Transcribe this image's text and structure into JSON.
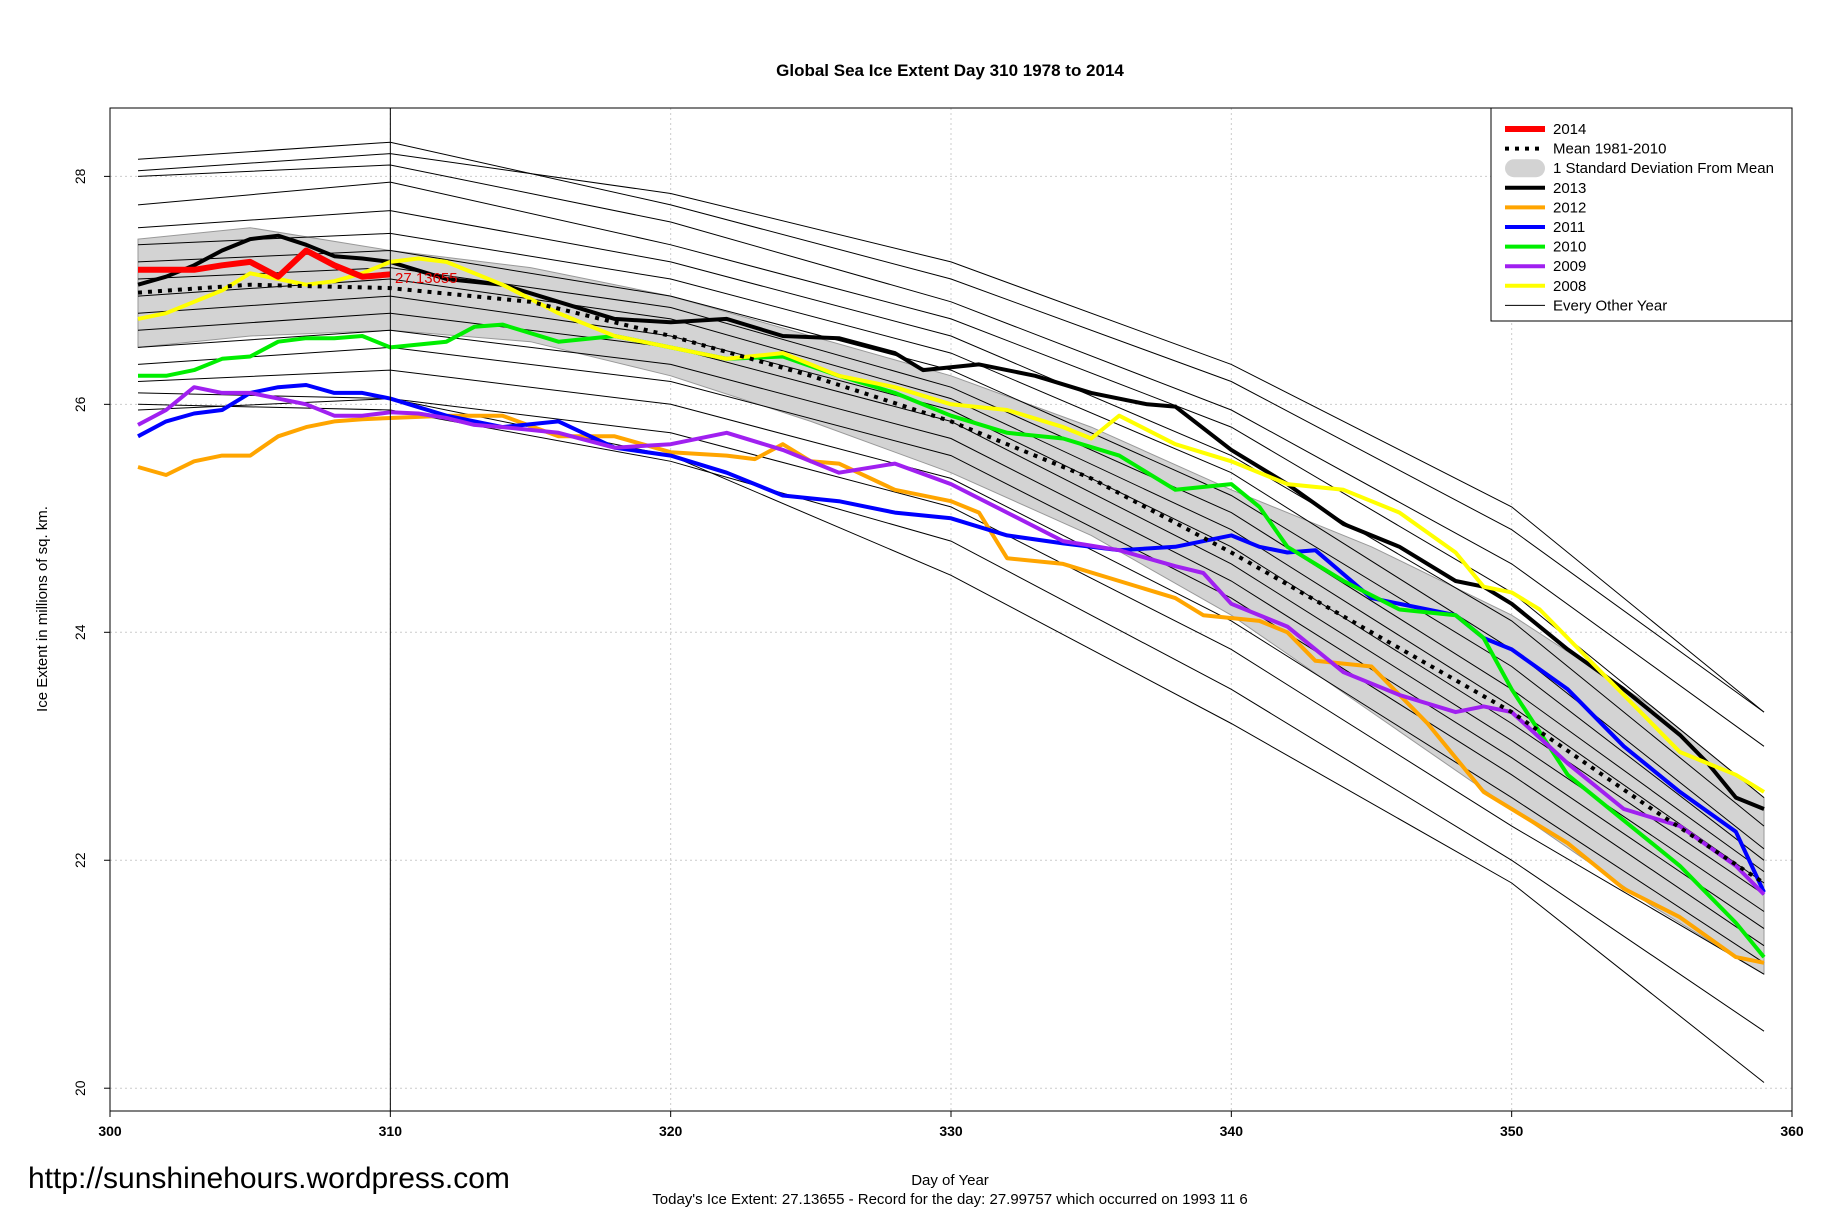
{
  "watermark": "http://sunshinehours.wordpress.com",
  "footer": {
    "xlabel": "Day of Year",
    "caption": "Today's Ice Extent: 27.13655  - Record for the day: 27.99757 which occurred on 1993 11 6"
  },
  "chart_data": {
    "type": "line",
    "title": "Global Sea Ice Extent Day 310 1978 to 2014",
    "xlabel": "Day of Year",
    "ylabel": "Ice Extent in millions of sq. km.",
    "xlim": [
      300,
      360
    ],
    "ylim": [
      19.8,
      28.6
    ],
    "xticks": [
      300,
      310,
      320,
      330,
      340,
      350,
      360
    ],
    "yticks": [
      20,
      22,
      24,
      26,
      28
    ],
    "grid": true,
    "legend_position": "top-right",
    "current_day": 310,
    "current_value_label": "27.13655",
    "legend": [
      {
        "label": "2014",
        "color": "#ff0000",
        "style": "thick"
      },
      {
        "label": "Mean 1981-2010",
        "color": "#000000",
        "style": "dotted"
      },
      {
        "label": "1 Standard Deviation From Mean",
        "color": "#d3d3d3",
        "style": "band"
      },
      {
        "label": "2013",
        "color": "#000000",
        "style": "line"
      },
      {
        "label": "2012",
        "color": "#ffa500",
        "style": "line"
      },
      {
        "label": "2011",
        "color": "#0000ff",
        "style": "line"
      },
      {
        "label": "2010",
        "color": "#00ee00",
        "style": "line"
      },
      {
        "label": "2009",
        "color": "#a020f0",
        "style": "line"
      },
      {
        "label": "2008",
        "color": "#ffff00",
        "style": "line"
      },
      {
        "label": "Every Other Year",
        "color": "#000000",
        "style": "thin"
      }
    ],
    "mean": {
      "x": [
        301,
        305,
        310,
        315,
        320,
        325,
        330,
        335,
        340,
        345,
        350,
        355,
        359
      ],
      "y": [
        26.98,
        27.05,
        27.02,
        26.9,
        26.6,
        26.25,
        25.85,
        25.35,
        24.7,
        24.0,
        23.3,
        22.45,
        21.8
      ]
    },
    "std_band": {
      "x": [
        301,
        305,
        310,
        315,
        320,
        325,
        330,
        335,
        340,
        345,
        350,
        355,
        359
      ],
      "upper": [
        27.45,
        27.55,
        27.35,
        27.2,
        26.95,
        26.6,
        26.25,
        25.8,
        25.25,
        24.75,
        24.15,
        23.35,
        22.55
      ],
      "lower": [
        26.5,
        26.6,
        26.65,
        26.55,
        26.25,
        25.85,
        25.4,
        24.85,
        24.15,
        23.3,
        22.45,
        21.6,
        21.0
      ]
    },
    "series": [
      {
        "name": "2014",
        "color": "#ff0000",
        "width": 6,
        "x": [
          301,
          302,
          303,
          304,
          305,
          306,
          307,
          308,
          309,
          310
        ],
        "y": [
          27.18,
          27.18,
          27.18,
          27.22,
          27.25,
          27.12,
          27.35,
          27.22,
          27.12,
          27.14
        ]
      },
      {
        "name": "2013",
        "color": "#000000",
        "width": 4,
        "x": [
          301,
          302,
          303,
          304,
          305,
          306,
          307,
          308,
          309,
          310,
          312,
          314,
          316,
          318,
          320,
          322,
          324,
          326,
          328,
          329,
          331,
          333,
          335,
          337,
          338,
          340,
          342,
          344,
          346,
          348,
          349,
          350,
          352,
          354,
          356,
          357,
          358,
          359
        ],
        "y": [
          27.05,
          27.12,
          27.22,
          27.35,
          27.45,
          27.48,
          27.4,
          27.3,
          27.28,
          27.25,
          27.1,
          27.05,
          26.9,
          26.75,
          26.72,
          26.75,
          26.6,
          26.58,
          26.45,
          26.3,
          26.35,
          26.25,
          26.1,
          26.0,
          25.98,
          25.6,
          25.3,
          24.95,
          24.75,
          24.45,
          24.4,
          24.25,
          23.85,
          23.5,
          23.1,
          22.85,
          22.55,
          22.45
        ]
      },
      {
        "name": "2012",
        "color": "#ffa500",
        "width": 4,
        "x": [
          301,
          302,
          303,
          304,
          305,
          306,
          307,
          308,
          309,
          310,
          312,
          314,
          316,
          318,
          320,
          322,
          323,
          324,
          325,
          326,
          328,
          330,
          331,
          332,
          334,
          336,
          338,
          339,
          341,
          342,
          343,
          345,
          347,
          349,
          350,
          352,
          354,
          356,
          358,
          359
        ],
        "y": [
          25.45,
          25.38,
          25.5,
          25.55,
          25.55,
          25.72,
          25.8,
          25.85,
          25.87,
          25.88,
          25.9,
          25.9,
          25.72,
          25.72,
          25.58,
          25.55,
          25.52,
          25.65,
          25.5,
          25.48,
          25.25,
          25.15,
          25.05,
          24.65,
          24.6,
          24.45,
          24.3,
          24.15,
          24.1,
          24.0,
          23.75,
          23.7,
          23.2,
          22.6,
          22.45,
          22.15,
          21.75,
          21.5,
          21.15,
          21.1
        ]
      },
      {
        "name": "2011",
        "color": "#0000ff",
        "width": 4,
        "x": [
          301,
          302,
          303,
          304,
          305,
          306,
          307,
          308,
          309,
          310,
          312,
          314,
          316,
          318,
          320,
          322,
          324,
          326,
          328,
          330,
          332,
          334,
          336,
          338,
          340,
          341,
          342,
          343,
          345,
          347,
          348,
          349,
          350,
          352,
          354,
          356,
          358,
          359
        ],
        "y": [
          25.72,
          25.85,
          25.92,
          25.95,
          26.1,
          26.15,
          26.17,
          26.1,
          26.1,
          26.05,
          25.9,
          25.8,
          25.85,
          25.62,
          25.55,
          25.4,
          25.2,
          25.15,
          25.05,
          25.0,
          24.85,
          24.78,
          24.72,
          24.75,
          24.85,
          24.75,
          24.7,
          24.72,
          24.3,
          24.2,
          24.15,
          23.95,
          23.85,
          23.5,
          23.0,
          22.6,
          22.25,
          21.72
        ]
      },
      {
        "name": "2010",
        "color": "#00ee00",
        "width": 4,
        "x": [
          301,
          302,
          303,
          304,
          305,
          306,
          307,
          308,
          309,
          310,
          312,
          313,
          314,
          316,
          318,
          320,
          322,
          324,
          326,
          328,
          330,
          332,
          334,
          336,
          338,
          340,
          341,
          342,
          344,
          346,
          348,
          349,
          350,
          352,
          354,
          356,
          358,
          359
        ],
        "y": [
          26.25,
          26.25,
          26.3,
          26.4,
          26.42,
          26.55,
          26.58,
          26.58,
          26.6,
          26.5,
          26.55,
          26.68,
          26.7,
          26.55,
          26.6,
          26.5,
          26.4,
          26.42,
          26.25,
          26.1,
          25.9,
          25.75,
          25.7,
          25.55,
          25.25,
          25.3,
          25.1,
          24.75,
          24.45,
          24.2,
          24.15,
          23.95,
          23.5,
          22.75,
          22.35,
          21.95,
          21.45,
          21.15
        ]
      },
      {
        "name": "2009",
        "color": "#a020f0",
        "width": 4,
        "x": [
          301,
          302,
          303,
          304,
          305,
          306,
          307,
          308,
          309,
          310,
          311,
          312,
          313,
          314,
          316,
          318,
          320,
          322,
          324,
          326,
          328,
          330,
          332,
          334,
          336,
          338,
          339,
          340,
          342,
          344,
          346,
          348,
          349,
          350,
          352,
          354,
          356,
          358,
          359
        ],
        "y": [
          25.82,
          25.95,
          26.15,
          26.1,
          26.1,
          26.05,
          26.0,
          25.9,
          25.9,
          25.93,
          25.92,
          25.88,
          25.82,
          25.8,
          25.75,
          25.62,
          25.65,
          25.75,
          25.6,
          25.4,
          25.48,
          25.3,
          25.05,
          24.8,
          24.72,
          24.58,
          24.52,
          24.25,
          24.05,
          23.65,
          23.45,
          23.3,
          23.35,
          23.3,
          22.85,
          22.45,
          22.3,
          21.95,
          21.7
        ]
      },
      {
        "name": "2008",
        "color": "#ffff00",
        "width": 4,
        "x": [
          301,
          302,
          303,
          304,
          305,
          306,
          307,
          308,
          309,
          310,
          311,
          312,
          314,
          316,
          318,
          320,
          322,
          324,
          326,
          328,
          330,
          332,
          334,
          335,
          336,
          338,
          340,
          342,
          344,
          346,
          348,
          349,
          350,
          351,
          352,
          354,
          356,
          358,
          359
        ],
        "y": [
          26.75,
          26.8,
          26.9,
          27.0,
          27.15,
          27.1,
          27.05,
          27.08,
          27.15,
          27.25,
          27.28,
          27.25,
          27.05,
          26.8,
          26.6,
          26.5,
          26.4,
          26.45,
          26.25,
          26.15,
          26.0,
          25.95,
          25.8,
          25.7,
          25.9,
          25.65,
          25.5,
          25.3,
          25.25,
          25.05,
          24.7,
          24.4,
          24.35,
          24.2,
          23.95,
          23.45,
          22.95,
          22.75,
          22.6
        ]
      },
      {
        "name": "Every Other Year",
        "color": "#000000",
        "width": 1,
        "x": [
          301,
          310,
          320,
          330,
          340,
          350,
          359
        ],
        "y": [
          28.15,
          28.3,
          27.75,
          27.1,
          26.2,
          24.9,
          23.3
        ]
      },
      {
        "name": "Every Other Year",
        "color": "#000000",
        "width": 1,
        "x": [
          301,
          310,
          320,
          330,
          340,
          350,
          359
        ],
        "y": [
          28.0,
          28.1,
          27.6,
          26.9,
          25.95,
          24.6,
          23.0
        ]
      },
      {
        "name": "Every Other Year",
        "color": "#000000",
        "width": 1,
        "x": [
          301,
          310,
          320,
          330,
          340,
          350,
          359
        ],
        "y": [
          27.75,
          27.95,
          27.4,
          26.75,
          25.8,
          24.35,
          22.55
        ]
      },
      {
        "name": "Every Other Year",
        "color": "#000000",
        "width": 1,
        "x": [
          301,
          310,
          320,
          330,
          340,
          350,
          359
        ],
        "y": [
          27.55,
          27.7,
          27.25,
          26.6,
          25.55,
          24.1,
          22.3
        ]
      },
      {
        "name": "Every Other Year",
        "color": "#000000",
        "width": 1,
        "x": [
          301,
          310,
          320,
          330,
          340,
          350,
          359
        ],
        "y": [
          27.4,
          27.5,
          27.1,
          26.45,
          25.4,
          23.85,
          22.1
        ]
      },
      {
        "name": "Every Other Year",
        "color": "#000000",
        "width": 1,
        "x": [
          301,
          310,
          320,
          330,
          340,
          350,
          359
        ],
        "y": [
          27.25,
          27.35,
          26.95,
          26.3,
          25.2,
          23.7,
          22.0
        ]
      },
      {
        "name": "Every Other Year",
        "color": "#000000",
        "width": 1,
        "x": [
          301,
          310,
          320,
          330,
          340,
          350,
          359
        ],
        "y": [
          27.1,
          27.2,
          26.85,
          26.15,
          25.05,
          23.5,
          21.9
        ]
      },
      {
        "name": "Every Other Year",
        "color": "#000000",
        "width": 1,
        "x": [
          301,
          310,
          320,
          330,
          340,
          350,
          359
        ],
        "y": [
          26.95,
          27.1,
          26.75,
          26.05,
          24.9,
          23.35,
          21.8
        ]
      },
      {
        "name": "Every Other Year",
        "color": "#000000",
        "width": 1,
        "x": [
          301,
          310,
          320,
          330,
          340,
          350,
          359
        ],
        "y": [
          26.8,
          26.95,
          26.6,
          25.95,
          24.75,
          23.2,
          21.7
        ]
      },
      {
        "name": "Every Other Year",
        "color": "#000000",
        "width": 1,
        "x": [
          301,
          310,
          320,
          330,
          340,
          350,
          359
        ],
        "y": [
          26.65,
          26.8,
          26.5,
          25.85,
          24.6,
          23.05,
          21.55
        ]
      },
      {
        "name": "Every Other Year",
        "color": "#000000",
        "width": 1,
        "x": [
          301,
          310,
          320,
          330,
          340,
          350,
          359
        ],
        "y": [
          26.5,
          26.65,
          26.35,
          25.7,
          24.45,
          22.9,
          21.4
        ]
      },
      {
        "name": "Every Other Year",
        "color": "#000000",
        "width": 1,
        "x": [
          301,
          310,
          320,
          330,
          340,
          350,
          359
        ],
        "y": [
          26.35,
          26.5,
          26.2,
          25.55,
          24.3,
          22.75,
          21.25
        ]
      },
      {
        "name": "Every Other Year",
        "color": "#000000",
        "width": 1,
        "x": [
          301,
          310,
          320,
          330,
          340,
          350,
          359
        ],
        "y": [
          26.2,
          26.3,
          26.0,
          25.35,
          24.1,
          22.55,
          21.1
        ]
      },
      {
        "name": "Every Other Year",
        "color": "#000000",
        "width": 1,
        "x": [
          301,
          310,
          320,
          330,
          340,
          350,
          359
        ],
        "y": [
          25.95,
          26.05,
          25.75,
          25.1,
          23.85,
          22.3,
          21.0
        ]
      },
      {
        "name": "Every Other Year",
        "color": "#000000",
        "width": 1,
        "x": [
          301,
          310,
          320,
          330,
          340,
          350,
          359
        ],
        "y": [
          26.0,
          25.95,
          25.5,
          24.8,
          23.5,
          22.0,
          20.5
        ]
      },
      {
        "name": "Every Other Year",
        "color": "#000000",
        "width": 1,
        "x": [
          301,
          310,
          320,
          330,
          340,
          350,
          359
        ],
        "y": [
          26.1,
          26.05,
          25.55,
          24.5,
          23.2,
          21.8,
          20.05
        ]
      },
      {
        "name": "Every Other Year",
        "color": "#000000",
        "width": 1,
        "x": [
          301,
          310,
          320,
          330,
          340,
          350,
          359
        ],
        "y": [
          28.05,
          28.2,
          27.85,
          27.25,
          26.35,
          25.1,
          23.3
        ]
      }
    ]
  }
}
